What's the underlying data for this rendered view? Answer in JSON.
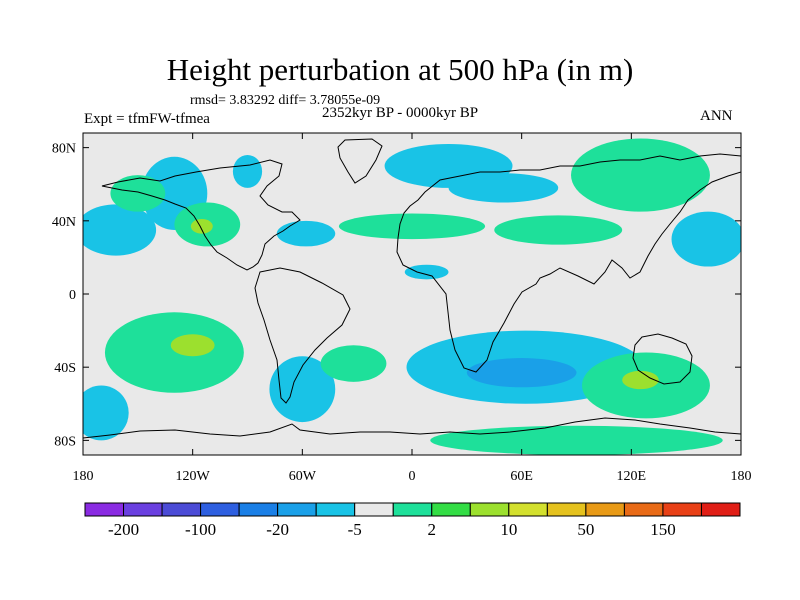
{
  "title": "Height perturbation at 500 hPa (in m)",
  "stats_label": "rmsd= 3.83292 diff= 3.78055e-09",
  "experiment_label": "Expt = tfmFW-tfmea",
  "period_label": "2352kyr BP - 0000kyr BP",
  "season_label": "ANN",
  "lat_ticks": [
    {
      "value": 80,
      "label": "80N"
    },
    {
      "value": 40,
      "label": "40N"
    },
    {
      "value": 0,
      "label": "0"
    },
    {
      "value": -40,
      "label": "40S"
    },
    {
      "value": -80,
      "label": "80S"
    }
  ],
  "lon_ticks": [
    {
      "value": -180,
      "label": "180"
    },
    {
      "value": -120,
      "label": "120W"
    },
    {
      "value": -60,
      "label": "60W"
    },
    {
      "value": 0,
      "label": "0"
    },
    {
      "value": 60,
      "label": "60E"
    },
    {
      "value": 120,
      "label": "120E"
    },
    {
      "value": 180,
      "label": "180"
    }
  ],
  "colorbar": {
    "colors": [
      "#8a2be2",
      "#6a3fe0",
      "#4b4bd6",
      "#2e5fe0",
      "#1a7fe6",
      "#1aa0e8",
      "#19c3e6",
      "#e9e9e9",
      "#1ee09a",
      "#33dd45",
      "#9ce02e",
      "#d3e02e",
      "#e5c21e",
      "#e89a16",
      "#e86a16",
      "#e84016",
      "#e01e16"
    ],
    "labels": [
      {
        "after_box": 1,
        "label": "-200"
      },
      {
        "after_box": 3,
        "label": "-100"
      },
      {
        "after_box": 5,
        "label": "-20"
      },
      {
        "after_box": 7,
        "label": "-5"
      },
      {
        "after_box": 9,
        "label": "2"
      },
      {
        "after_box": 11,
        "label": "10"
      },
      {
        "after_box": 13,
        "label": "50"
      },
      {
        "after_box": 15,
        "label": "150"
      }
    ]
  },
  "regions": [
    {
      "level": "blue",
      "lon": -162,
      "lat": 35,
      "rlon": 22,
      "rlat": 14
    },
    {
      "level": "blue",
      "lon": -130,
      "lat": 55,
      "rlon": 18,
      "rlat": 20
    },
    {
      "level": "blue",
      "lon": -90,
      "lat": 67,
      "rlon": 8,
      "rlat": 9
    },
    {
      "level": "blue",
      "lon": -58,
      "lat": 33,
      "rlon": 16,
      "rlat": 7
    },
    {
      "level": "blue",
      "lon": 20,
      "lat": 70,
      "rlon": 35,
      "rlat": 12
    },
    {
      "level": "blue",
      "lon": 50,
      "lat": 58,
      "rlon": 30,
      "rlat": 8
    },
    {
      "level": "blue",
      "lon": 8,
      "lat": 12,
      "rlon": 12,
      "rlat": 4
    },
    {
      "level": "blue",
      "lon": 162,
      "lat": 30,
      "rlon": 20,
      "rlat": 15
    },
    {
      "level": "blue",
      "lon": 62,
      "lat": -40,
      "rlon": 65,
      "rlat": 20
    },
    {
      "level": "blue",
      "lon": -170,
      "lat": -65,
      "rlon": 15,
      "rlat": 15
    },
    {
      "level": "blue",
      "lon": -60,
      "lat": -52,
      "rlon": 18,
      "rlat": 18
    },
    {
      "level": "green",
      "lon": -130,
      "lat": -32,
      "rlon": 38,
      "rlat": 22
    },
    {
      "level": "green",
      "lon": -112,
      "lat": 38,
      "rlon": 18,
      "rlat": 12
    },
    {
      "level": "green",
      "lon": -150,
      "lat": 55,
      "rlon": 15,
      "rlat": 10
    },
    {
      "level": "green",
      "lon": 125,
      "lat": 65,
      "rlon": 38,
      "rlat": 20
    },
    {
      "level": "green",
      "lon": 80,
      "lat": 35,
      "rlon": 35,
      "rlat": 8
    },
    {
      "level": "green",
      "lon": 0,
      "lat": 37,
      "rlon": 40,
      "rlat": 7
    },
    {
      "level": "green",
      "lon": -32,
      "lat": -38,
      "rlon": 18,
      "rlat": 10
    },
    {
      "level": "green",
      "lon": 128,
      "lat": -50,
      "rlon": 35,
      "rlat": 18
    },
    {
      "level": "green",
      "lon": 90,
      "lat": -80,
      "rlon": 80,
      "rlat": 8
    },
    {
      "level": "lime",
      "lon": -120,
      "lat": -28,
      "rlon": 12,
      "rlat": 6
    },
    {
      "level": "lime",
      "lon": 125,
      "lat": -47,
      "rlon": 10,
      "rlat": 5
    },
    {
      "level": "lime",
      "lon": -115,
      "lat": 37,
      "rlon": 6,
      "rlat": 4
    }
  ]
}
